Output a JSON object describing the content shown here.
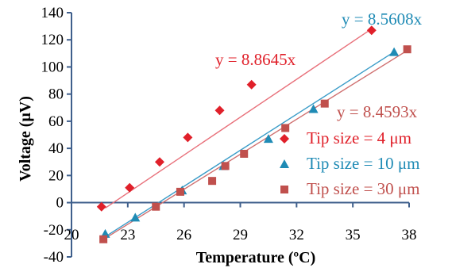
{
  "chart_data": {
    "type": "scatter",
    "title": "",
    "xlabel": "Temperature (ºC)",
    "ylabel": "Voltage (μV)",
    "xlim": [
      20,
      38
    ],
    "ylim": [
      -40,
      140
    ],
    "x_ticks": [
      20,
      23,
      26,
      29,
      32,
      35,
      38
    ],
    "y_ticks": [
      -40,
      -20,
      0,
      20,
      40,
      60,
      80,
      100,
      120,
      140
    ],
    "x_tick_labels": [
      "20",
      "23",
      "26",
      "29",
      "32",
      "35",
      "38"
    ],
    "y_tick_labels": [
      "-40",
      "-20",
      "0",
      "20",
      "40",
      "60",
      "80",
      "100",
      "120",
      "140"
    ],
    "grid": false,
    "legend_position": "right",
    "series": [
      {
        "name": "Tip size = 4 μm",
        "marker": "diamond",
        "color": "#e0202a",
        "line_color": "#e8707a",
        "fit_label": "y = 8.8645x",
        "points": [
          [
            21.6,
            -3
          ],
          [
            23.1,
            11
          ],
          [
            24.7,
            30
          ],
          [
            26.2,
            48
          ],
          [
            27.9,
            68
          ],
          [
            29.6,
            87
          ],
          [
            36.0,
            127
          ]
        ],
        "trendline": [
          [
            21.8,
            -4
          ],
          [
            36.1,
            129
          ]
        ]
      },
      {
        "name": "Tip size = 10 μm",
        "marker": "triangle",
        "color": "#1f8bb5",
        "line_color": "#3a9cc8",
        "fit_label": "y = 8.5608x",
        "points": [
          [
            21.8,
            -23
          ],
          [
            23.4,
            -11
          ],
          [
            25.9,
            9
          ],
          [
            28.1,
            27
          ],
          [
            30.5,
            47
          ],
          [
            32.9,
            69
          ],
          [
            37.2,
            111
          ]
        ],
        "trendline": [
          [
            21.7,
            -26
          ],
          [
            37.3,
            112
          ]
        ]
      },
      {
        "name": "Tip size = 30 μm",
        "marker": "square",
        "color": "#c0504d",
        "line_color": "#d07070",
        "fit_label": "y = 8.4593x",
        "points": [
          [
            21.7,
            -27
          ],
          [
            24.5,
            -3
          ],
          [
            25.8,
            8
          ],
          [
            27.5,
            16
          ],
          [
            28.2,
            27
          ],
          [
            29.2,
            36
          ],
          [
            31.4,
            55
          ],
          [
            33.5,
            73
          ],
          [
            37.9,
            113
          ]
        ],
        "trendline": [
          [
            21.6,
            -28
          ],
          [
            38.0,
            113
          ]
        ]
      }
    ],
    "legend": [
      "Tip size = 4 μm",
      "Tip size = 10 μm",
      "Tip size = 30 μm"
    ]
  }
}
